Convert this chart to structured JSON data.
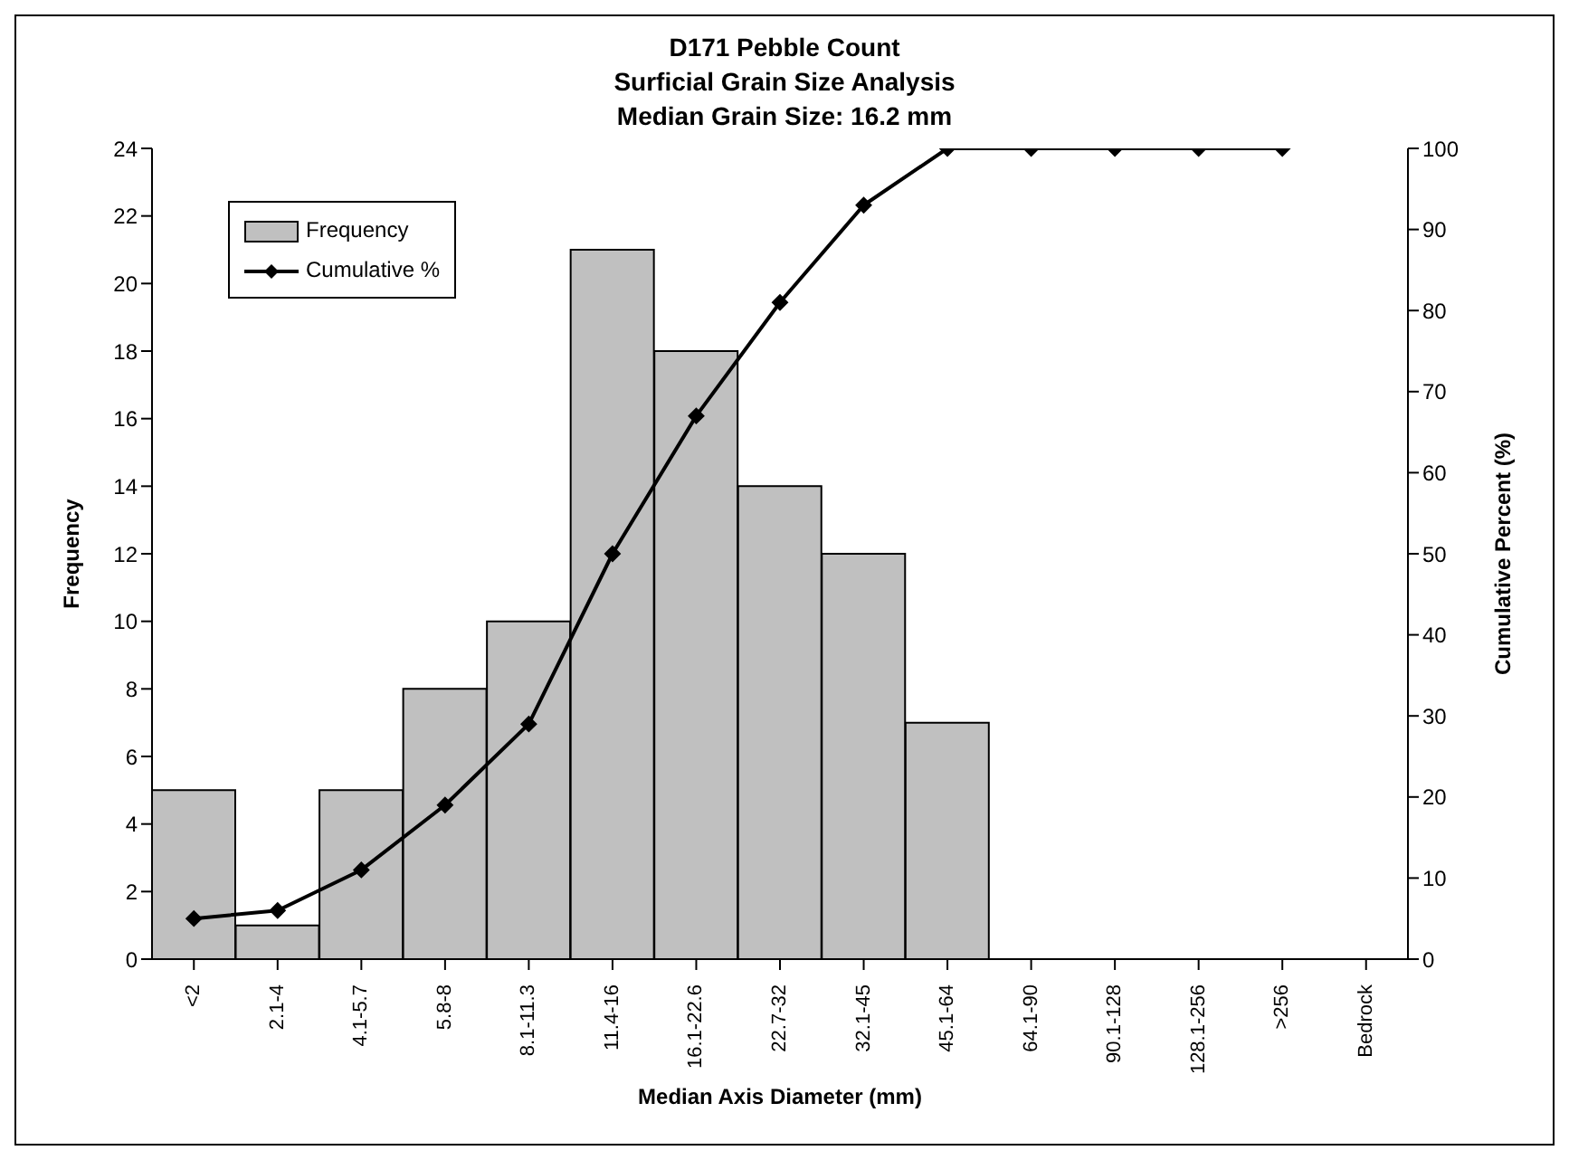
{
  "chart_data": {
    "type": "bar",
    "title": "D171 Pebble Count",
    "subtitle": "Surficial Grain Size Analysis\nMedian Grain Size: 16.2 mm",
    "xlabel": "Median Axis Diameter (mm)",
    "ylabel": "Frequency",
    "y2label": "Cumulative Percent (%)",
    "categories": [
      "<2",
      "2.1-4",
      "4.1-5.7",
      "5.8-8",
      "8.1-11.3",
      "11.4-16",
      "16.1-22.6",
      "22.7-32",
      "32.1-45",
      "45.1-64",
      "64.1-90",
      "90.1-128",
      "128.1-256",
      ">256",
      "Bedrock"
    ],
    "series": [
      {
        "name": "Frequency",
        "color": "#c0c0c0",
        "values": [
          5,
          1,
          5,
          8,
          10,
          21,
          18,
          14,
          12,
          7,
          0,
          0,
          0,
          0,
          0
        ]
      },
      {
        "name": "Cumulative %",
        "type": "line",
        "axis": "y2",
        "color": "#000000",
        "marker": "diamond",
        "values": [
          5,
          6,
          11,
          19,
          29,
          50,
          67,
          81,
          93,
          100,
          100,
          100,
          100,
          100,
          null
        ]
      }
    ],
    "ylim": [
      0,
      24
    ],
    "yticks": [
      0,
      2,
      4,
      6,
      8,
      10,
      12,
      14,
      16,
      18,
      20,
      22,
      24
    ],
    "y2lim": [
      0,
      100
    ],
    "y2ticks": [
      0,
      10,
      20,
      30,
      40,
      50,
      60,
      70,
      80,
      90,
      100
    ],
    "grid": false,
    "legend": "top left"
  }
}
